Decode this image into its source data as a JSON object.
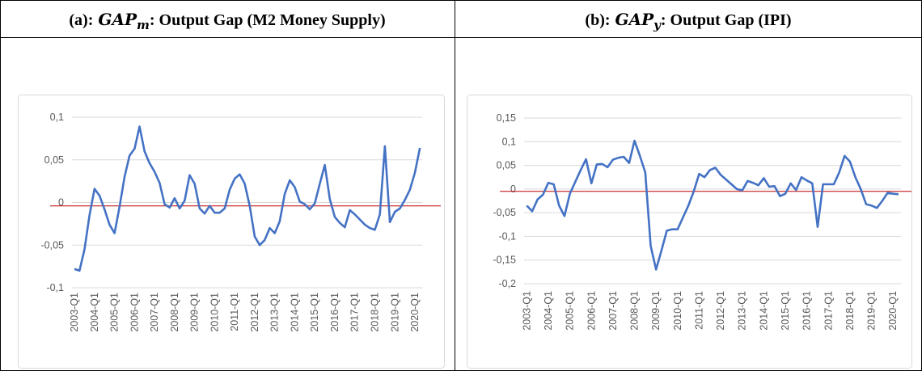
{
  "chart_data": [
    {
      "type": "line",
      "label": "(a):",
      "symbol": "GAP",
      "subscript": "m",
      "title_suffix": ": Output Gap (M2 Money Supply)",
      "categories": [
        "2003-Q1",
        null,
        null,
        null,
        "2004-Q1",
        null,
        null,
        null,
        "2005-Q1",
        null,
        null,
        null,
        "2006-Q1",
        null,
        null,
        null,
        "2007-Q1",
        null,
        null,
        null,
        "2008-Q1",
        null,
        null,
        null,
        "2009-Q1",
        null,
        null,
        null,
        "2010-Q1",
        null,
        null,
        null,
        "2011-Q1",
        null,
        null,
        null,
        "2012-Q1",
        null,
        null,
        null,
        "2013-Q1",
        null,
        null,
        null,
        "2014-Q1",
        null,
        null,
        null,
        "2015-Q1",
        null,
        null,
        null,
        "2016-Q1",
        null,
        null,
        null,
        "2017-Q1",
        null,
        null,
        null,
        "2018-Q1",
        null,
        null,
        null,
        "2019-Q1",
        null,
        null,
        null,
        "2020-Q1",
        null
      ],
      "series": [
        {
          "color": "#4472c4",
          "values": [
            -0.078,
            -0.08,
            -0.055,
            -0.015,
            0.016,
            0.008,
            -0.008,
            -0.026,
            -0.036,
            -0.005,
            0.03,
            0.055,
            0.063,
            0.089,
            0.06,
            0.046,
            0.036,
            0.023,
            -0.002,
            -0.006,
            0.005,
            -0.007,
            0.002,
            0.032,
            0.022,
            -0.007,
            -0.013,
            -0.004,
            -0.012,
            -0.012,
            -0.007,
            0.015,
            0.028,
            0.033,
            0.022,
            -0.004,
            -0.04,
            -0.05,
            -0.044,
            -0.03,
            -0.036,
            -0.022,
            0.01,
            0.026,
            0.018,
            0.001,
            -0.002,
            -0.008,
            -0.001,
            0.022,
            0.044,
            0.004,
            -0.017,
            -0.024,
            -0.029,
            -0.009,
            -0.014,
            -0.02,
            -0.026,
            -0.03,
            -0.032,
            -0.014,
            0.066,
            -0.023,
            -0.011,
            -0.007,
            0.003,
            0.015,
            0.035,
            0.064
          ]
        }
      ],
      "hline": {
        "value": -0.004,
        "color": "#c00000"
      },
      "ylim": [
        -0.1,
        0.1
      ],
      "yticks": [
        {
          "value": -0.1,
          "label": "-0,1"
        },
        {
          "value": -0.05,
          "label": "-0,05"
        },
        0,
        {
          "value": 0.05,
          "label": "0,05"
        },
        {
          "value": 0.1,
          "label": "0,1"
        }
      ],
      "grid": true
    },
    {
      "type": "line",
      "label": "(b):",
      "symbol": "GAP",
      "subscript": "y",
      "title_suffix": ": Output Gap (IPI)",
      "categories": [
        "2003-Q1",
        null,
        null,
        null,
        "2004-Q1",
        null,
        null,
        null,
        "2005-Q1",
        null,
        null,
        null,
        "2006-Q1",
        null,
        null,
        null,
        "2007-Q1",
        null,
        null,
        null,
        "2008-Q1",
        null,
        null,
        null,
        "2009-Q1",
        null,
        null,
        null,
        "2010-Q1",
        null,
        null,
        null,
        "2011-Q1",
        null,
        null,
        null,
        "2012-Q1",
        null,
        null,
        null,
        "2013-Q1",
        null,
        null,
        null,
        "2014-Q1",
        null,
        null,
        null,
        "2015-Q1",
        null,
        null,
        null,
        "2016-Q1",
        null,
        null,
        null,
        "2017-Q1",
        null,
        null,
        null,
        "2018-Q1",
        null,
        null,
        null,
        "2019-Q1",
        null,
        null,
        null,
        "2020-Q1",
        null
      ],
      "series": [
        {
          "color": "#4472c4",
          "values": [
            -0.035,
            -0.047,
            -0.022,
            -0.012,
            0.013,
            0.01,
            -0.035,
            -0.057,
            -0.01,
            0.015,
            0.04,
            0.063,
            0.012,
            0.052,
            0.053,
            0.046,
            0.062,
            0.066,
            0.068,
            0.055,
            0.102,
            0.07,
            0.035,
            -0.12,
            -0.17,
            -0.13,
            -0.088,
            -0.085,
            -0.085,
            -0.06,
            -0.035,
            -0.005,
            0.032,
            0.025,
            0.04,
            0.045,
            0.03,
            0.02,
            0.01,
            0.0,
            -0.003,
            0.017,
            0.013,
            0.008,
            0.023,
            0.005,
            0.006,
            -0.015,
            -0.01,
            0.012,
            -0.002,
            0.025,
            0.018,
            0.012,
            -0.08,
            0.01,
            0.01,
            0.01,
            0.035,
            0.07,
            0.058,
            0.025,
            0.0,
            -0.032,
            -0.035,
            -0.04,
            -0.025,
            -0.008,
            -0.01,
            -0.011
          ]
        }
      ],
      "hline": {
        "value": -0.005,
        "color": "#c00000"
      },
      "ylim": [
        -0.2,
        0.15
      ],
      "yticks": [
        {
          "value": -0.2,
          "label": "-0,2"
        },
        {
          "value": -0.15,
          "label": "-0,15"
        },
        {
          "value": -0.1,
          "label": "-0,1"
        },
        {
          "value": -0.05,
          "label": "-0,05"
        },
        0,
        {
          "value": 0.05,
          "label": "0,05"
        },
        {
          "value": 0.1,
          "label": "0,1"
        },
        {
          "value": 0.15,
          "label": "0,15"
        }
      ],
      "grid": true
    }
  ]
}
